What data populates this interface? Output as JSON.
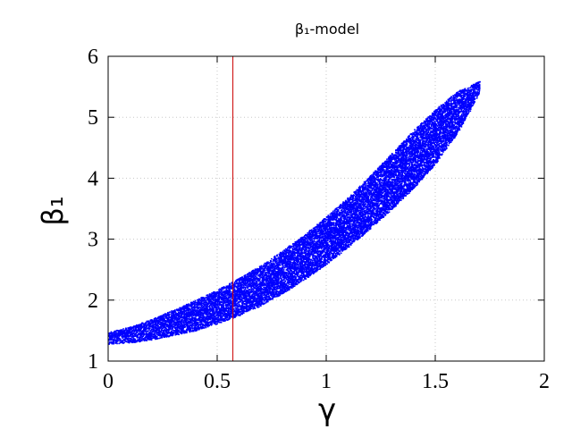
{
  "chart_data": {
    "type": "scatter",
    "title": "β₁-model",
    "xlabel": "γ",
    "ylabel": "β₁",
    "xlim": [
      0,
      2
    ],
    "ylim": [
      1,
      6
    ],
    "xticks": [
      0,
      0.5,
      1,
      1.5,
      2
    ],
    "yticks": [
      1,
      2,
      3,
      4,
      5,
      6
    ],
    "xtick_labels": [
      "0",
      "0.5",
      "1",
      "1.5",
      "2"
    ],
    "ytick_labels": [
      "1",
      "2",
      "3",
      "4",
      "5",
      "6"
    ],
    "grid": true,
    "legend": "none",
    "vline": {
      "x": 0.572,
      "color": "#cc0000"
    },
    "series": [
      {
        "color": "#0000ff",
        "marker": "dot",
        "upper_edge": {
          "x": [
            0,
            0.1,
            0.2,
            0.3,
            0.4,
            0.5,
            0.6,
            0.7,
            0.8,
            0.9,
            1.0,
            1.1,
            1.2,
            1.3,
            1.4,
            1.5,
            1.6,
            1.7
          ],
          "y": [
            1.48,
            1.57,
            1.7,
            1.85,
            2.01,
            2.18,
            2.37,
            2.58,
            2.82,
            3.09,
            3.38,
            3.7,
            4.05,
            4.42,
            4.8,
            5.14,
            5.43,
            5.6
          ]
        },
        "lower_edge": {
          "x": [
            0,
            0.1,
            0.2,
            0.3,
            0.4,
            0.5,
            0.6,
            0.7,
            0.8,
            0.9,
            1.0,
            1.1,
            1.2,
            1.3,
            1.4,
            1.5,
            1.6,
            1.7
          ],
          "y": [
            1.29,
            1.31,
            1.36,
            1.43,
            1.51,
            1.62,
            1.76,
            1.92,
            2.12,
            2.35,
            2.6,
            2.88,
            3.18,
            3.5,
            3.85,
            4.25,
            4.75,
            5.4
          ]
        }
      }
    ]
  }
}
